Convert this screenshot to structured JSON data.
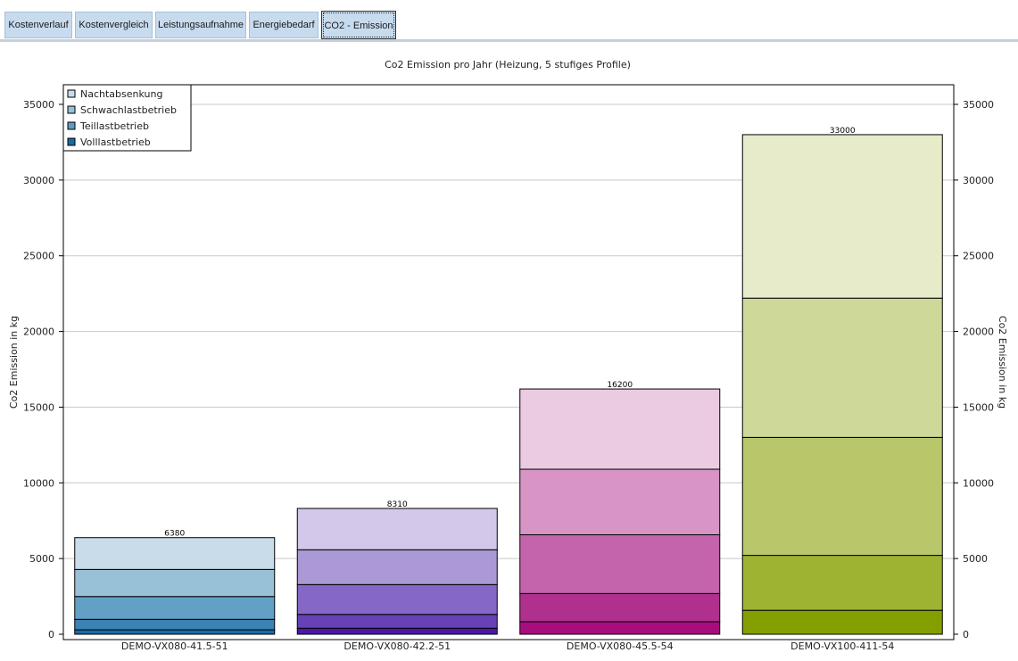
{
  "tabs": [
    {
      "label": "Kostenverlauf",
      "active": false
    },
    {
      "label": "Kostenvergleich",
      "active": false
    },
    {
      "label": "Leistungsaufnahme",
      "active": false
    },
    {
      "label": "Energiebedarf",
      "active": false
    },
    {
      "label": "CO2 - Emission",
      "active": true
    }
  ],
  "chart_data": {
    "type": "bar",
    "stacked": true,
    "title": "Co2 Emission pro Jahr (Heizung, 5 stufiges Profile)",
    "ylabel": "Co2 Emission in kg",
    "ylabel_right": "Co2 Emission in kg",
    "ylim": [
      0,
      36000
    ],
    "yticks": [
      0,
      5000,
      10000,
      15000,
      20000,
      25000,
      30000,
      35000
    ],
    "grid": true,
    "legend_position": "top-left",
    "legend": [
      "Nachtabsenkung",
      "Schwachlastbetrieb",
      "Teillastbetrieb",
      "Volllastbetrieb"
    ],
    "legend_colors": [
      "#c9dce9",
      "#98c0d6",
      "#5d9cc2",
      "#1a6aa3"
    ],
    "categories": [
      "DEMO-VX080-41.5-51",
      "DEMO-VX080-42.2-51",
      "DEMO-VX080-45.5-54",
      "DEMO-VX100-411-54"
    ],
    "stacks": [
      {
        "category": "DEMO-VX080-41.5-51",
        "cumulative": [
          293,
          984,
          2490,
          4280,
          6380
        ],
        "colors": [
          "#1a6aa3",
          "#3a83b4",
          "#62a0c5",
          "#98c0d6",
          "#c9dce9"
        ]
      },
      {
        "category": "DEMO-VX080-42.2-51",
        "cumulative": [
          397,
          1310,
          3280,
          5580,
          8310
        ],
        "colors": [
          "#4a17a8",
          "#6642b6",
          "#8467c6",
          "#ab98d6",
          "#d3c8e9"
        ]
      },
      {
        "category": "DEMO-VX080-45.5-54",
        "cumulative": [
          826,
          2690,
          6570,
          10900,
          16200
        ],
        "colors": [
          "#a80d7e",
          "#b0308e",
          "#c464ac",
          "#d794c5",
          "#ebcbe2"
        ]
      },
      {
        "category": "DEMO-VX100-411-54",
        "cumulative": [
          1580,
          5210,
          13000,
          22200,
          33000
        ],
        "colors": [
          "#84a000",
          "#9db331",
          "#b9c76a",
          "#ced999",
          "#e7ebc9"
        ]
      }
    ]
  }
}
